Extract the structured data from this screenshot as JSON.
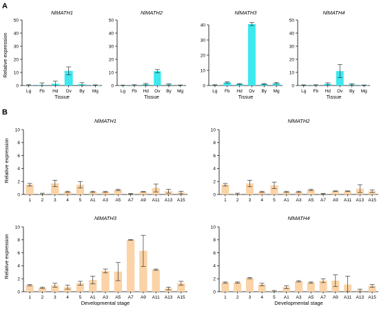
{
  "panels": {
    "a": {
      "letter": "A",
      "ylabel": "Relative expression",
      "xlabel": "Tissue"
    },
    "b": {
      "letter": "B",
      "ylabel": "Relative expression",
      "xlabel": "Developmental stage"
    }
  },
  "colors": {
    "tissue_bar": "#3de8ee",
    "stage_bar": "#fbd3a6",
    "axis": "#000000",
    "error_bar": "#333333"
  },
  "chart_data": [
    {
      "type": "bar",
      "panel": "A",
      "title": "NlMATH1",
      "categories": [
        "Lg",
        "Fb",
        "Hd",
        "Ov",
        "By",
        "Mg"
      ],
      "values": [
        0.3,
        0.5,
        1.3,
        11.2,
        1.0,
        0.2
      ],
      "errors": [
        0.3,
        1.5,
        2.0,
        3.0,
        1.2,
        0.3
      ],
      "xlabel": "Tissue",
      "ylabel": "Relative expression",
      "ylim": [
        0,
        50
      ],
      "yticks": [
        0,
        10,
        20,
        30,
        40,
        50
      ]
    },
    {
      "type": "bar",
      "panel": "A",
      "title": "NlMATH2",
      "categories": [
        "Lg",
        "Fb",
        "Hd",
        "Ov",
        "By",
        "Mg"
      ],
      "values": [
        0.2,
        0.3,
        1.0,
        11.0,
        0.8,
        0.2
      ],
      "errors": [
        0.1,
        0.3,
        0.6,
        1.2,
        0.5,
        0.2
      ],
      "xlabel": "Tissue",
      "ylabel": "",
      "ylim": [
        0,
        50
      ],
      "yticks": [
        0,
        10,
        20,
        30,
        40,
        50
      ]
    },
    {
      "type": "bar",
      "panel": "A",
      "title": "NlMATH3",
      "categories": [
        "Lg",
        "Fb",
        "Hd",
        "Ov",
        "By",
        "Mg"
      ],
      "values": [
        0.3,
        2.0,
        1.0,
        40.5,
        1.0,
        1.5
      ],
      "errors": [
        0.2,
        0.4,
        0.3,
        1.0,
        0.3,
        0.5
      ],
      "xlabel": "Tissue",
      "ylabel": "",
      "ylim": [
        0,
        40
      ],
      "yticks": [
        0,
        10,
        20,
        30,
        40
      ]
    },
    {
      "type": "bar",
      "panel": "A",
      "title": "NlMATH4",
      "categories": [
        "Lg",
        "Fb",
        "Hd",
        "Ov",
        "By",
        "Mg"
      ],
      "values": [
        0.3,
        0.3,
        1.3,
        11.0,
        0.8,
        0.2
      ],
      "errors": [
        0.2,
        0.3,
        0.8,
        5.0,
        0.6,
        0.2
      ],
      "xlabel": "Tissue",
      "ylabel": "",
      "ylim": [
        0,
        50
      ],
      "yticks": [
        0,
        10,
        20,
        30,
        40,
        50
      ]
    },
    {
      "type": "bar",
      "panel": "B",
      "title": "NlMATH1",
      "categories": [
        "1",
        "2",
        "3",
        "4",
        "5",
        "A1",
        "A3",
        "A5",
        "A7",
        "A9",
        "A11",
        "A13",
        "A15"
      ],
      "values": [
        1.5,
        0.1,
        1.7,
        0.4,
        1.5,
        0.4,
        0.4,
        0.7,
        0.1,
        0.4,
        1.0,
        0.5,
        0.3
      ],
      "errors": [
        0.2,
        0.1,
        0.5,
        0.1,
        0.5,
        0.1,
        0.1,
        0.1,
        0.05,
        0.05,
        0.6,
        0.3,
        0.2
      ],
      "xlabel": "",
      "ylabel": "Relative expression",
      "ylim": [
        0,
        10
      ],
      "yticks": [
        0,
        2,
        4,
        6,
        8,
        10
      ]
    },
    {
      "type": "bar",
      "panel": "B",
      "title": "NlMATH2",
      "categories": [
        "1",
        "2",
        "3",
        "4",
        "5",
        "A1",
        "A3",
        "A5",
        "A7",
        "A9",
        "A11",
        "A13",
        "A15"
      ],
      "values": [
        1.5,
        0.1,
        1.7,
        0.4,
        1.4,
        0.4,
        0.4,
        0.7,
        0.1,
        0.5,
        0.5,
        0.9,
        0.5
      ],
      "errors": [
        0.2,
        0.1,
        0.5,
        0.1,
        0.5,
        0.1,
        0.1,
        0.1,
        0.05,
        0.05,
        0.05,
        0.6,
        0.2
      ],
      "xlabel": "",
      "ylabel": "",
      "ylim": [
        0,
        10
      ],
      "yticks": [
        0,
        2,
        4,
        6,
        8,
        10
      ]
    },
    {
      "type": "bar",
      "panel": "B",
      "title": "NlMATH3",
      "categories": [
        "1",
        "2",
        "3",
        "4",
        "5",
        "A1",
        "A3",
        "A5",
        "A7",
        "A9",
        "A11",
        "A13",
        "A15"
      ],
      "values": [
        1.0,
        0.6,
        1.0,
        0.7,
        1.3,
        1.8,
        3.2,
        3.1,
        8.0,
        6.3,
        3.4,
        0.5,
        1.3
      ],
      "errors": [
        0.1,
        0.1,
        0.3,
        0.3,
        0.3,
        0.6,
        0.3,
        1.4,
        0.05,
        2.4,
        0.1,
        0.2,
        0.3
      ],
      "xlabel": "Developmental stage",
      "ylabel": "Relative expression",
      "ylim": [
        0,
        10
      ],
      "yticks": [
        0,
        2,
        4,
        6,
        8,
        10
      ]
    },
    {
      "type": "bar",
      "panel": "B",
      "title": "NlMATH4",
      "categories": [
        "1",
        "2",
        "3",
        "4",
        "5",
        "A1",
        "A3",
        "A5",
        "A7",
        "A9",
        "A11",
        "A13",
        "A15"
      ],
      "values": [
        1.4,
        1.4,
        2.1,
        1.1,
        0.1,
        0.7,
        1.6,
        1.4,
        1.7,
        1.7,
        1.1,
        0.2,
        0.9
      ],
      "errors": [
        0.1,
        0.1,
        0.1,
        0.2,
        0.1,
        0.2,
        0.1,
        0.1,
        0.3,
        0.9,
        1.3,
        0.2,
        0.2
      ],
      "xlabel": "Developmental stage",
      "ylabel": "",
      "ylim": [
        0,
        10
      ],
      "yticks": [
        0,
        2,
        4,
        6,
        8,
        10
      ]
    }
  ]
}
